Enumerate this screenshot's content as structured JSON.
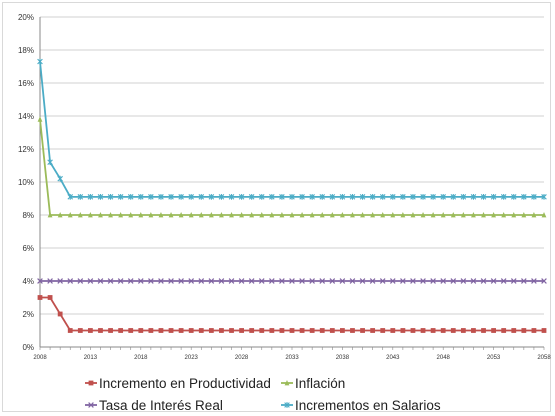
{
  "chart_data": {
    "type": "line",
    "title": "",
    "xlabel": "",
    "ylabel": "",
    "ylim": [
      0,
      20
    ],
    "y_ticks": [
      "0%",
      "2%",
      "4%",
      "6%",
      "8%",
      "10%",
      "12%",
      "14%",
      "16%",
      "18%",
      "20%"
    ],
    "x_ticks": [
      "2008",
      "2013",
      "2018",
      "2023",
      "2028",
      "2033",
      "2038",
      "2043",
      "2048",
      "2053",
      "2058"
    ],
    "x_range": [
      2008,
      2058
    ],
    "grid": "horizontal",
    "legend_position": "bottom",
    "series": [
      {
        "name": "Incremento en Productividad",
        "color": "#c0504d",
        "marker": "square",
        "points": [
          [
            2008,
            3
          ],
          [
            2009,
            3
          ],
          [
            2010,
            2
          ],
          [
            2011,
            1
          ],
          [
            2058,
            1
          ]
        ]
      },
      {
        "name": "Inflación",
        "color": "#9bbb59",
        "marker": "triangle",
        "points": [
          [
            2008,
            13.8
          ],
          [
            2009,
            8
          ],
          [
            2058,
            8
          ]
        ]
      },
      {
        "name": "Tasa de Interés Real",
        "color": "#8064a2",
        "marker": "x",
        "points": [
          [
            2008,
            4
          ],
          [
            2058,
            4
          ]
        ]
      },
      {
        "name": "Incrementos en Salarios",
        "color": "#4bacc6",
        "marker": "star",
        "points": [
          [
            2008,
            17.3
          ],
          [
            2009,
            11.2
          ],
          [
            2010,
            10.2
          ],
          [
            2011,
            9.1
          ],
          [
            2058,
            9.1
          ]
        ]
      }
    ]
  }
}
